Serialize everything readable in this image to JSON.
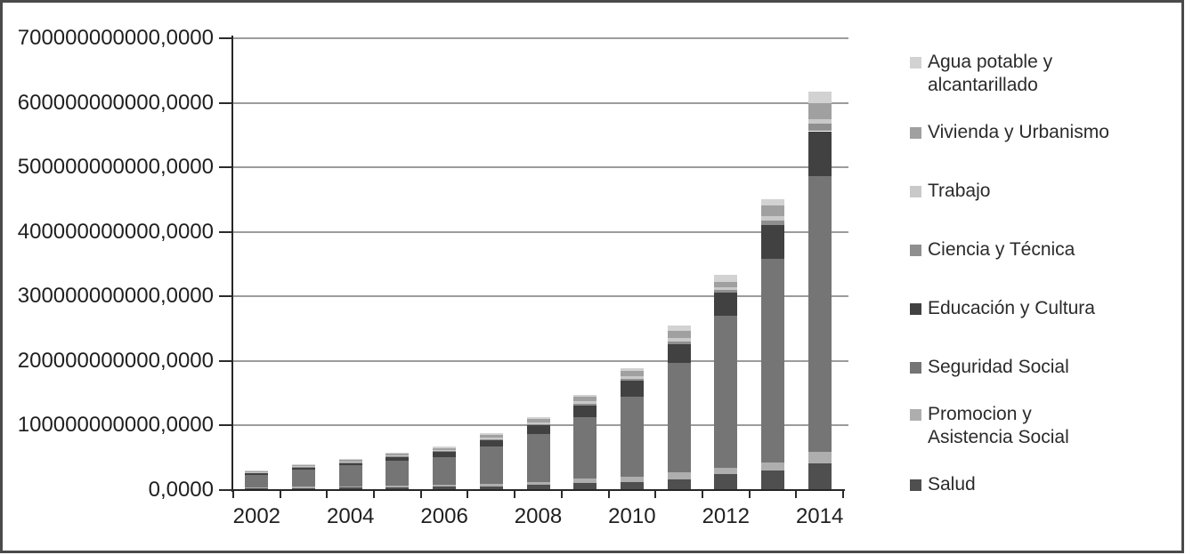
{
  "chart_data": {
    "type": "bar",
    "stacked": true,
    "title": "",
    "xlabel": "",
    "ylabel": "",
    "grid": true,
    "categories": [
      "2002",
      "2003",
      "2004",
      "2005",
      "2006",
      "2007",
      "2008",
      "2009",
      "2010",
      "2011",
      "2012",
      "2013",
      "2014"
    ],
    "x_tick_labels_shown": [
      "2002",
      "2004",
      "2006",
      "2008",
      "2010",
      "2012",
      "2014"
    ],
    "y_axis": {
      "min": 0,
      "max": 700000000000,
      "step": 100000000000,
      "tick_labels_top_to_bottom": [
        "700000000000,0000",
        "600000000000,0000",
        "500000000000,0000",
        "400000000000,0000",
        "300000000000,0000",
        "200000000000,0000",
        "100000000000,0000",
        "0,0000"
      ]
    },
    "series_bottom_to_top": [
      {
        "name": "Salud",
        "slug": "salud",
        "color": "#4f4f4f",
        "values": [
          2500000000,
          3000000000,
          3500000000,
          4000000000,
          5000000000,
          6000000000,
          8000000000,
          11000000000,
          13000000000,
          17000000000,
          25000000000,
          30000000000,
          41000000000
        ]
      },
      {
        "name": "Promocion y Asistencia Social",
        "slug": "promocion-y-asistencia-social",
        "color": "#aeaeae",
        "values": [
          1500000000,
          2000000000,
          2500000000,
          3000000000,
          3500000000,
          4000000000,
          5000000000,
          7000000000,
          8000000000,
          10000000000,
          10000000000,
          13000000000,
          18000000000
        ]
      },
      {
        "name": "Seguridad Social",
        "slug": "seguridad-social",
        "color": "#757575",
        "values": [
          20000000000,
          27000000000,
          32000000000,
          38000000000,
          43000000000,
          57000000000,
          74000000000,
          95000000000,
          124000000000,
          170000000000,
          235000000000,
          315000000000,
          427000000000
        ]
      },
      {
        "name": "Educación y Cultura",
        "slug": "educacion-y-cultura",
        "color": "#414141",
        "values": [
          2500000000,
          3500000000,
          4500000000,
          6000000000,
          7500000000,
          10000000000,
          13000000000,
          18000000000,
          24000000000,
          29000000000,
          36000000000,
          52000000000,
          70000000000
        ]
      },
      {
        "name": "Ciencia y Técnica",
        "slug": "ciencia-y-tecnica",
        "color": "#8f8f8f",
        "values": [
          500000000,
          700000000,
          800000000,
          1000000000,
          1200000000,
          1500000000,
          2000000000,
          2500000000,
          3000000000,
          4000000000,
          4000000000,
          7000000000,
          12000000000
        ]
      },
      {
        "name": "Trabajo",
        "slug": "trabajo",
        "color": "#c9c9c9",
        "values": [
          800000000,
          1000000000,
          1200000000,
          1500000000,
          1800000000,
          2200000000,
          3000000000,
          4000000000,
          5000000000,
          5000000000,
          4000000000,
          7000000000,
          7000000000
        ]
      },
      {
        "name": "Vivienda y Urbanismo",
        "slug": "vivienda-y-urbanismo",
        "color": "#a0a0a0",
        "values": [
          1200000000,
          1800000000,
          2200000000,
          2800000000,
          3200000000,
          4500000000,
          5000000000,
          6500000000,
          7500000000,
          12000000000,
          8000000000,
          17000000000,
          25000000000
        ]
      },
      {
        "name": "Agua potable y alcantarillado",
        "slug": "agua-potable-y-alcantarillado",
        "color": "#d2d2d2",
        "values": [
          1000000000,
          1200000000,
          1500000000,
          1800000000,
          2000000000,
          2800000000,
          3000000000,
          4000000000,
          4500000000,
          8000000000,
          11000000000,
          10000000000,
          17000000000
        ]
      }
    ],
    "legend": {
      "position": "right",
      "items_top_to_bottom": [
        {
          "label": "Agua potable y alcantarillado",
          "slug": "agua-potable-y-alcantarillado",
          "color": "#d2d2d2"
        },
        {
          "label": "Vivienda y Urbanismo",
          "slug": "vivienda-y-urbanismo",
          "color": "#a0a0a0"
        },
        {
          "label": "Trabajo",
          "slug": "trabajo",
          "color": "#c9c9c9"
        },
        {
          "label": "Ciencia y Técnica",
          "slug": "ciencia-y-tecnica",
          "color": "#8f8f8f"
        },
        {
          "label": "Educación y Cultura",
          "slug": "educacion-y-cultura",
          "color": "#414141"
        },
        {
          "label": "Seguridad Social",
          "slug": "seguridad-social",
          "color": "#757575"
        },
        {
          "label": "Promocion y Asistencia Social",
          "slug": "promocion-y-asistencia-social",
          "color": "#aeaeae"
        },
        {
          "label": "Salud",
          "slug": "salud",
          "color": "#4f4f4f"
        }
      ]
    }
  },
  "layout_colors": {
    "frame_border": "#4a4a4a",
    "gridline": "#9c9c9c",
    "axis": "#262626",
    "text": "#1f1f1f"
  }
}
